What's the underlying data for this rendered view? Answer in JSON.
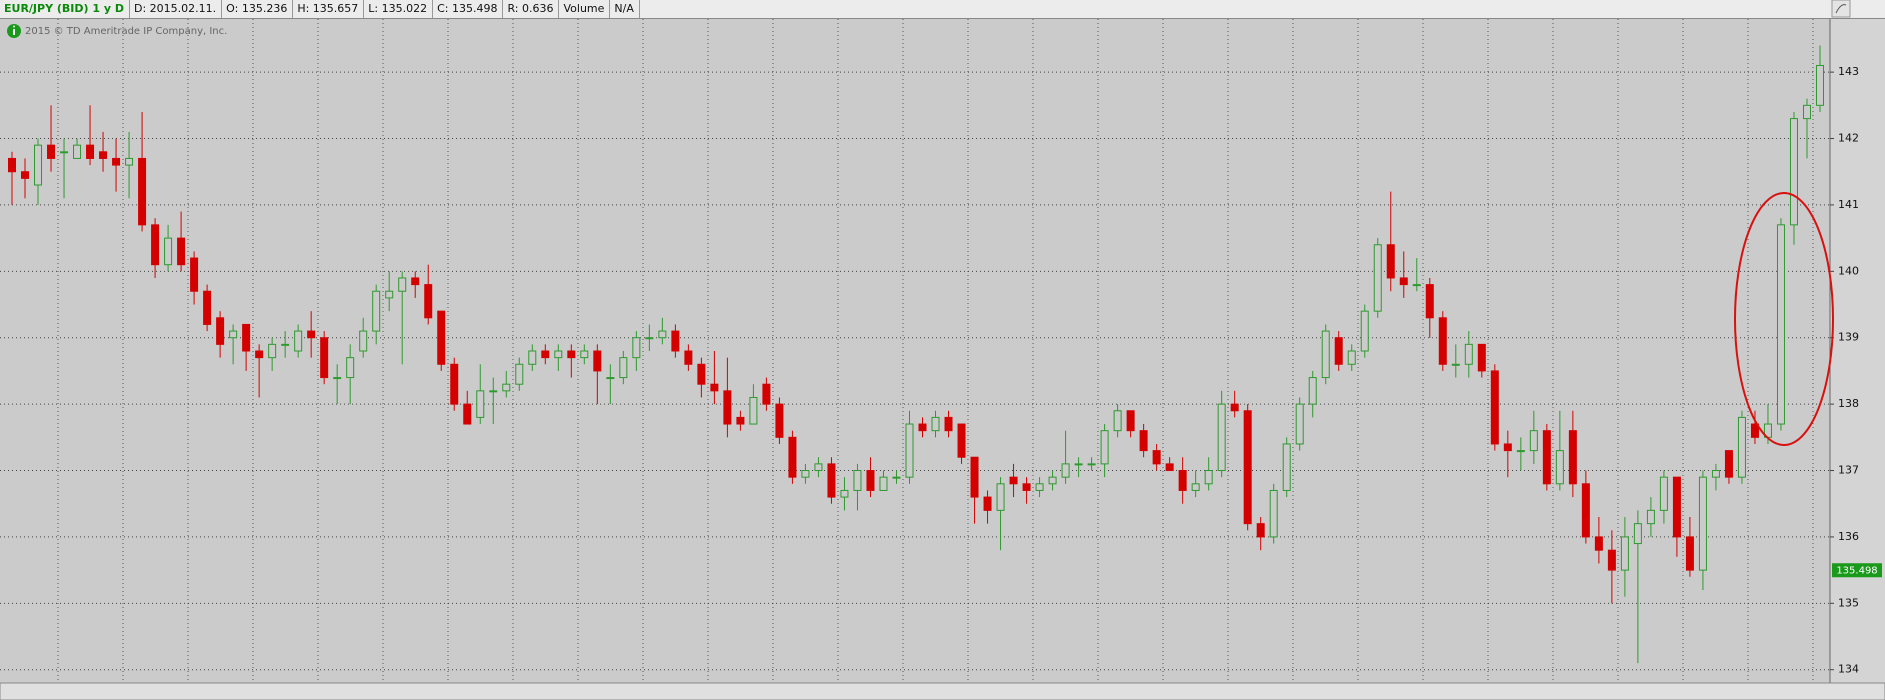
{
  "header": {
    "symbol": "EUR/JPY (BID) 1 y D",
    "date": "D: 2015.02.11.",
    "open": "O: 135.236",
    "high": "H: 135.657",
    "low": "L: 135.022",
    "close": "C: 135.498",
    "range": "R: 0.636",
    "volume": "Volume",
    "volume_value": "N/A"
  },
  "copyright": "2015 © TD Ameritrade IP Company, Inc.",
  "chart_data": {
    "type": "candlestick",
    "open": [
      141.7,
      141.5,
      141.3,
      141.9,
      141.8,
      141.7,
      141.9,
      141.8,
      141.7,
      141.6,
      141.7,
      140.7,
      140.1,
      140.5,
      140.2,
      139.7,
      139.3,
      139.0,
      139.2,
      138.8,
      138.7,
      138.9,
      138.8,
      139.1,
      139.0,
      138.4,
      138.4,
      138.8,
      139.1,
      139.6,
      139.7,
      139.9,
      139.8,
      139.4,
      138.6,
      138.0,
      137.8,
      138.2,
      138.2,
      138.3,
      138.6,
      138.8,
      138.7,
      138.8,
      138.7,
      138.8,
      138.4,
      138.4,
      138.7,
      139.0,
      139.0,
      139.1,
      138.8,
      138.6,
      138.3,
      138.2,
      137.8,
      137.7,
      138.3,
      138.0,
      137.5,
      136.9,
      137.0,
      137.1,
      136.6,
      136.7,
      137.0,
      136.7,
      136.9,
      136.9,
      137.7,
      137.6,
      137.8,
      137.7,
      137.2,
      136.6,
      136.4,
      136.9,
      136.8,
      136.7,
      136.8,
      136.9,
      137.1,
      137.1,
      137.1,
      137.6,
      137.9,
      137.6,
      137.3,
      137.1,
      137.0,
      136.7,
      136.8,
      137.0,
      138.0,
      137.9,
      136.2,
      136.0,
      136.7,
      137.4,
      138.0,
      138.4,
      139.0,
      138.6,
      138.8,
      139.4,
      140.4,
      139.9,
      139.8,
      139.8,
      139.3,
      138.6,
      138.6,
      138.9,
      138.5,
      137.4,
      137.3,
      137.3,
      137.6,
      136.8,
      137.6,
      136.8,
      136.0,
      135.8,
      135.5,
      135.9,
      136.2,
      136.4,
      136.9,
      136.0,
      135.5,
      136.9,
      137.3,
      136.9,
      137.7,
      137.5,
      137.7,
      140.7,
      142.3,
      142.5
    ],
    "high": [
      141.8,
      141.7,
      142.0,
      142.5,
      142.0,
      142.0,
      142.5,
      142.1,
      142.0,
      142.1,
      142.4,
      140.8,
      140.7,
      140.9,
      140.3,
      139.8,
      139.4,
      139.2,
      139.2,
      138.9,
      139.0,
      139.1,
      139.2,
      139.4,
      139.1,
      138.6,
      138.9,
      139.3,
      139.8,
      140.0,
      140.0,
      140.0,
      140.1,
      139.4,
      138.7,
      138.2,
      138.6,
      138.4,
      138.5,
      138.7,
      138.9,
      138.9,
      138.9,
      138.9,
      138.9,
      138.9,
      138.6,
      138.8,
      139.1,
      139.2,
      139.3,
      139.2,
      138.9,
      138.7,
      138.8,
      138.7,
      137.9,
      138.3,
      138.4,
      138.1,
      137.6,
      137.1,
      137.2,
      137.2,
      136.9,
      137.1,
      137.2,
      137.0,
      137.0,
      137.9,
      137.8,
      137.9,
      137.9,
      137.7,
      137.2,
      136.7,
      136.9,
      137.1,
      136.9,
      136.9,
      137.0,
      137.6,
      137.2,
      137.2,
      137.7,
      138.0,
      137.9,
      137.7,
      137.4,
      137.2,
      137.2,
      137.0,
      137.2,
      138.2,
      138.2,
      138.0,
      136.3,
      136.8,
      137.5,
      138.1,
      138.5,
      139.2,
      139.1,
      138.9,
      139.5,
      140.5,
      141.2,
      140.3,
      140.2,
      139.9,
      139.4,
      138.9,
      139.1,
      138.9,
      138.6,
      137.6,
      137.5,
      137.9,
      137.7,
      137.9,
      137.9,
      137.0,
      136.3,
      136.1,
      136.3,
      136.4,
      136.6,
      137.0,
      136.9,
      136.3,
      137.0,
      137.1,
      137.3,
      137.9,
      137.9,
      138.0,
      140.8,
      142.4,
      142.6,
      143.4
    ],
    "low": [
      141.0,
      141.1,
      141.0,
      141.5,
      141.1,
      141.7,
      141.6,
      141.5,
      141.2,
      141.1,
      140.6,
      139.9,
      140.0,
      140.0,
      139.5,
      139.1,
      138.7,
      138.6,
      138.5,
      138.1,
      138.5,
      138.7,
      138.7,
      138.7,
      138.3,
      138.0,
      138.0,
      138.7,
      138.9,
      139.4,
      138.6,
      139.6,
      139.2,
      138.5,
      137.9,
      137.7,
      137.7,
      137.7,
      138.1,
      138.2,
      138.5,
      138.6,
      138.5,
      138.4,
      138.6,
      138.0,
      138.0,
      138.3,
      138.5,
      138.8,
      138.9,
      138.7,
      138.5,
      138.1,
      138.0,
      137.5,
      137.6,
      137.7,
      137.9,
      137.4,
      136.8,
      136.8,
      136.9,
      136.5,
      136.4,
      136.4,
      136.6,
      136.7,
      136.8,
      136.8,
      137.5,
      137.5,
      137.5,
      137.1,
      136.2,
      136.2,
      135.8,
      136.6,
      136.5,
      136.6,
      136.7,
      136.8,
      136.9,
      137.0,
      136.9,
      137.5,
      137.5,
      137.2,
      137.0,
      137.0,
      136.5,
      136.6,
      136.7,
      136.9,
      137.8,
      136.1,
      135.8,
      135.9,
      136.6,
      137.3,
      137.8,
      138.3,
      138.5,
      138.5,
      138.7,
      139.3,
      139.7,
      139.6,
      139.7,
      139.0,
      138.5,
      138.4,
      138.4,
      138.4,
      137.3,
      136.9,
      137.0,
      137.1,
      136.7,
      136.7,
      136.6,
      135.9,
      135.6,
      135.0,
      135.1,
      134.1,
      136.0,
      136.2,
      135.7,
      135.4,
      135.2,
      136.7,
      136.8,
      136.8,
      137.4,
      137.4,
      137.6,
      140.4,
      141.7,
      142.4
    ],
    "close": [
      141.5,
      141.4,
      141.9,
      141.7,
      141.8,
      141.9,
      141.7,
      141.7,
      141.6,
      141.7,
      140.7,
      140.1,
      140.5,
      140.1,
      139.7,
      139.2,
      138.9,
      139.1,
      138.8,
      138.7,
      138.9,
      138.9,
      139.1,
      139.0,
      138.4,
      138.4,
      138.7,
      139.1,
      139.7,
      139.7,
      139.9,
      139.8,
      139.3,
      138.6,
      138.0,
      137.7,
      138.2,
      138.2,
      138.3,
      138.6,
      138.8,
      138.7,
      138.8,
      138.7,
      138.8,
      138.5,
      138.4,
      138.7,
      139.0,
      139.0,
      139.1,
      138.8,
      138.6,
      138.3,
      138.2,
      137.7,
      137.7,
      138.1,
      138.0,
      137.5,
      136.9,
      137.0,
      137.1,
      136.6,
      136.7,
      137.0,
      136.7,
      136.9,
      136.9,
      137.7,
      137.6,
      137.8,
      137.6,
      137.2,
      136.6,
      136.4,
      136.8,
      136.8,
      136.7,
      136.8,
      136.9,
      137.1,
      137.1,
      137.1,
      137.6,
      137.9,
      137.6,
      137.3,
      137.1,
      137.0,
      136.7,
      136.8,
      137.0,
      138.0,
      137.9,
      136.2,
      136.0,
      136.7,
      137.4,
      138.0,
      138.4,
      139.1,
      138.6,
      138.8,
      139.4,
      140.4,
      139.9,
      139.8,
      139.8,
      139.3,
      138.6,
      138.6,
      138.9,
      138.5,
      137.4,
      137.3,
      137.3,
      137.6,
      136.8,
      137.3,
      136.8,
      136.0,
      135.8,
      135.5,
      136.0,
      136.2,
      136.4,
      136.9,
      136.0,
      135.5,
      136.9,
      137.0,
      136.9,
      137.8,
      137.5,
      137.7,
      140.7,
      142.3,
      142.5,
      143.1
    ],
    "up_color": "#2e9a2e",
    "down_color": "#d40000",
    "ylim": [
      133.8,
      143.8
    ],
    "yticks": [
      134,
      135,
      136,
      137,
      138,
      139,
      140,
      141,
      142,
      143
    ],
    "grid": true,
    "last_price": {
      "value": 135.498,
      "label": "135.498"
    }
  }
}
